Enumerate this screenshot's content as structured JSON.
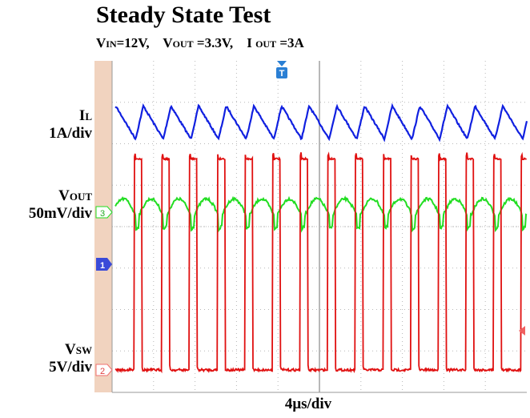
{
  "title": "Steady State Test",
  "conditions": {
    "vin_main": "V",
    "vin_sub": "IN",
    "vin_val": "=12V,",
    "vout_main": "V",
    "vout_sub": "OUT",
    "vout_val": "=3.3V,",
    "iout_main": "I",
    "iout_sub": "OUT",
    "iout_val": "=3A"
  },
  "channels": {
    "il": {
      "name_main": "I",
      "name_sub": "L",
      "scale": "1A/div",
      "color": "#1020e0"
    },
    "vout": {
      "name_main": "V",
      "name_sub": "OUT",
      "scale": "50mV/div",
      "marker": "3",
      "color": "#22dd22"
    },
    "vsw": {
      "name_main": "V",
      "name_sub": "SW",
      "scale": "5V/div",
      "marker": "2",
      "color": "#e01010"
    }
  },
  "markers": {
    "ch1": "1",
    "trigger": "T"
  },
  "timebase": "4μs/div",
  "chart_data": {
    "type": "line",
    "title": "Steady State Test",
    "xlabel": "4μs/div",
    "x_divisions": 10,
    "switching_cycles_on_screen": 15,
    "series": [
      {
        "name": "IL",
        "scale": "1A/div",
        "waveform": "triangle",
        "ripple_divisions": 1.0
      },
      {
        "name": "VOUT",
        "scale": "50mV/div",
        "waveform": "ripple",
        "ripple_divisions": 0.8
      },
      {
        "name": "VSW",
        "scale": "5V/div",
        "waveform": "square",
        "amplitude_divisions": 2.5,
        "duty_cycle": 0.28
      }
    ],
    "grid": true
  }
}
